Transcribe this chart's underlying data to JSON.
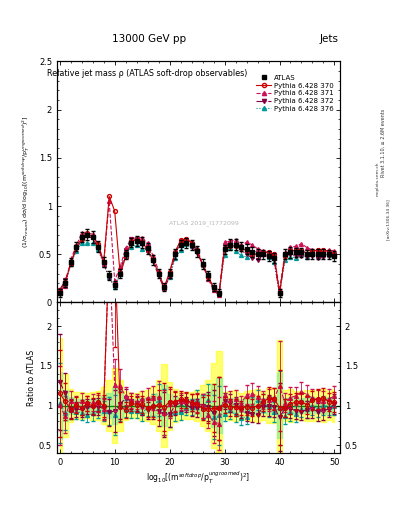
{
  "title_top": "13000 GeV pp",
  "title_right": "Jets",
  "plot_title": "Relative jet mass ρ (ATLAS soft-drop observables)",
  "ylabel_main": "(1/σ$_{resum}$) dσ/d log$_{10}$[(m$^{soft drop}$/p$_T^{ungroomed}$)$^2$]",
  "ylabel_ratio": "Ratio to ATLAS",
  "xlabel": "log$_{10}$[(m$^{soft drop}$/p$_T^{ungroomed}$)$^2$]",
  "right_label": "Rivet 3.1.10, ≥ 2.6M events",
  "arxiv_label": "[arXiv:1306.34 36]",
  "url_label": "mcplots.cern.ch",
  "watermark": "ATLAS 2019_I1772099",
  "xmin": -0.5,
  "xmax": 51,
  "ymin_main": 0.0,
  "ymax_main": 2.5,
  "ymin_ratio": 0.4,
  "ymax_ratio": 2.3,
  "x_ticks_main": [
    0,
    10,
    20,
    30,
    40,
    50
  ],
  "yticks_main": [
    0,
    0.5,
    1.0,
    1.5,
    2.0,
    2.5
  ],
  "yticks_ratio": [
    0.5,
    1.0,
    1.5,
    2.0
  ],
  "colors": {
    "atlas": "#000000",
    "p370": "#cc0000",
    "p371": "#cc1155",
    "p372": "#880044",
    "p376": "#009999"
  },
  "legend_labels": [
    "ATLAS",
    "Pythia 6.428 370",
    "Pythia 6.428 371",
    "Pythia 6.428 372",
    "Pythia 6.428 376"
  ]
}
